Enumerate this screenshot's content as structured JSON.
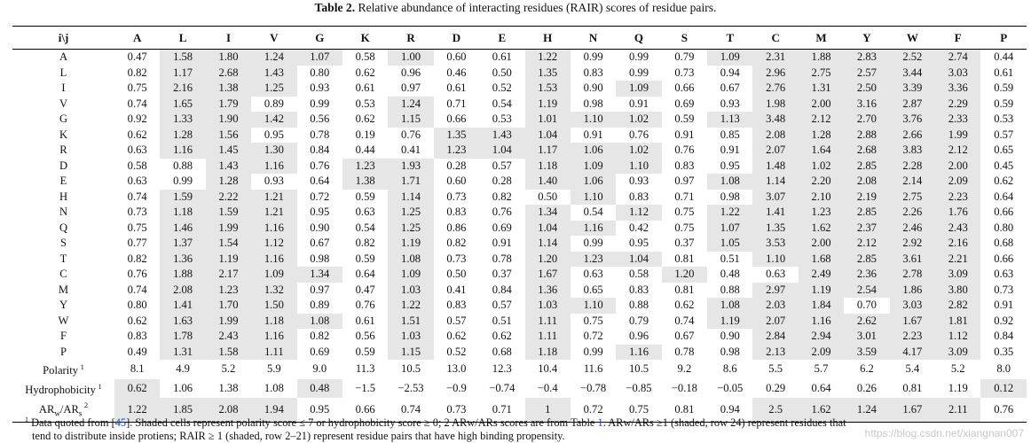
{
  "caption": {
    "label": "Table 2.",
    "text": " Relative abundance of interacting residues (RAIR) scores of residue pairs."
  },
  "table": {
    "corner": "i\\j",
    "columns": [
      "A",
      "L",
      "I",
      "V",
      "G",
      "K",
      "R",
      "D",
      "E",
      "H",
      "N",
      "Q",
      "S",
      "T",
      "C",
      "M",
      "Y",
      "W",
      "F",
      "P"
    ],
    "rows": [
      {
        "label": "A",
        "values": [
          "0.47",
          "1.58",
          "1.80",
          "1.24",
          "1.07",
          "0.58",
          "1.00",
          "0.60",
          "0.61",
          "1.22",
          "0.99",
          "0.99",
          "0.79",
          "1.09",
          "2.31",
          "1.88",
          "2.83",
          "2.52",
          "2.74",
          "0.44"
        ],
        "shaded": [
          false,
          true,
          true,
          true,
          true,
          false,
          true,
          false,
          false,
          true,
          false,
          false,
          false,
          true,
          true,
          true,
          true,
          true,
          true,
          false
        ]
      },
      {
        "label": "L",
        "values": [
          "0.82",
          "1.17",
          "2.68",
          "1.43",
          "0.80",
          "0.62",
          "0.96",
          "0.46",
          "0.50",
          "1.35",
          "0.83",
          "0.99",
          "0.73",
          "0.94",
          "2.96",
          "2.75",
          "2.57",
          "3.44",
          "3.03",
          "0.61"
        ],
        "shaded": [
          false,
          true,
          true,
          true,
          false,
          false,
          false,
          false,
          false,
          true,
          false,
          false,
          false,
          false,
          true,
          true,
          true,
          true,
          true,
          false
        ]
      },
      {
        "label": "I",
        "values": [
          "0.75",
          "2.16",
          "1.38",
          "1.25",
          "0.93",
          "0.61",
          "0.97",
          "0.61",
          "0.52",
          "1.53",
          "0.90",
          "1.09",
          "0.66",
          "0.67",
          "2.76",
          "1.31",
          "2.50",
          "3.39",
          "3.36",
          "0.59"
        ],
        "shaded": [
          false,
          true,
          true,
          true,
          false,
          false,
          false,
          false,
          false,
          true,
          false,
          true,
          false,
          false,
          true,
          true,
          true,
          true,
          true,
          false
        ]
      },
      {
        "label": "V",
        "values": [
          "0.74",
          "1.65",
          "1.79",
          "0.89",
          "0.99",
          "0.53",
          "1.24",
          "0.71",
          "0.54",
          "1.19",
          "0.98",
          "0.91",
          "0.69",
          "0.93",
          "1.98",
          "2.00",
          "3.16",
          "2.87",
          "2.29",
          "0.59"
        ],
        "shaded": [
          false,
          true,
          true,
          false,
          false,
          false,
          true,
          false,
          false,
          true,
          false,
          false,
          false,
          false,
          true,
          true,
          true,
          true,
          true,
          false
        ]
      },
      {
        "label": "G",
        "values": [
          "0.92",
          "1.33",
          "1.90",
          "1.42",
          "0.56",
          "0.62",
          "1.15",
          "0.66",
          "0.53",
          "1.01",
          "1.10",
          "1.02",
          "0.59",
          "1.13",
          "3.48",
          "2.12",
          "2.70",
          "3.76",
          "2.33",
          "0.53"
        ],
        "shaded": [
          false,
          true,
          true,
          true,
          false,
          false,
          true,
          false,
          false,
          true,
          true,
          true,
          false,
          true,
          true,
          true,
          true,
          true,
          true,
          false
        ]
      },
      {
        "label": "K",
        "values": [
          "0.62",
          "1.28",
          "1.56",
          "0.95",
          "0.78",
          "0.19",
          "0.76",
          "1.35",
          "1.43",
          "1.04",
          "0.91",
          "0.76",
          "0.91",
          "0.85",
          "2.08",
          "1.28",
          "2.88",
          "2.66",
          "1.99",
          "0.57"
        ],
        "shaded": [
          false,
          true,
          true,
          false,
          false,
          false,
          false,
          true,
          true,
          true,
          false,
          false,
          false,
          false,
          true,
          true,
          true,
          true,
          true,
          false
        ]
      },
      {
        "label": "R",
        "values": [
          "0.63",
          "1.16",
          "1.45",
          "1.30",
          "0.84",
          "0.44",
          "0.41",
          "1.23",
          "1.04",
          "1.17",
          "1.06",
          "1.02",
          "0.76",
          "0.91",
          "2.07",
          "1.64",
          "2.68",
          "3.83",
          "2.12",
          "0.65"
        ],
        "shaded": [
          false,
          true,
          true,
          true,
          false,
          false,
          false,
          true,
          true,
          true,
          true,
          true,
          false,
          false,
          true,
          true,
          true,
          true,
          true,
          false
        ]
      },
      {
        "label": "D",
        "values": [
          "0.58",
          "0.88",
          "1.43",
          "1.16",
          "0.76",
          "1.23",
          "1.93",
          "0.28",
          "0.57",
          "1.18",
          "1.09",
          "1.10",
          "0.83",
          "0.95",
          "1.48",
          "1.02",
          "2.85",
          "2.28",
          "2.00",
          "0.45"
        ],
        "shaded": [
          false,
          false,
          true,
          true,
          false,
          true,
          true,
          false,
          false,
          true,
          true,
          true,
          false,
          false,
          true,
          true,
          true,
          true,
          true,
          false
        ]
      },
      {
        "label": "E",
        "values": [
          "0.63",
          "0.99",
          "1.28",
          "0.93",
          "0.64",
          "1.38",
          "1.71",
          "0.60",
          "0.28",
          "1.40",
          "1.06",
          "0.93",
          "0.97",
          "1.08",
          "1.14",
          "2.20",
          "2.08",
          "2.14",
          "2.09",
          "0.62"
        ],
        "shaded": [
          false,
          false,
          true,
          false,
          false,
          true,
          true,
          false,
          false,
          true,
          true,
          false,
          false,
          true,
          true,
          true,
          true,
          true,
          true,
          false
        ]
      },
      {
        "label": "H",
        "values": [
          "0.74",
          "1.59",
          "2.22",
          "1.21",
          "0.72",
          "0.59",
          "1.14",
          "0.73",
          "0.82",
          "0.50",
          "1.10",
          "0.83",
          "0.71",
          "0.98",
          "3.07",
          "2.10",
          "2.19",
          "2.75",
          "2.23",
          "0.64"
        ],
        "shaded": [
          false,
          true,
          true,
          true,
          false,
          false,
          true,
          false,
          false,
          false,
          true,
          false,
          false,
          false,
          true,
          true,
          true,
          true,
          true,
          false
        ]
      },
      {
        "label": "N",
        "values": [
          "0.73",
          "1.18",
          "1.59",
          "1.21",
          "0.95",
          "0.63",
          "1.25",
          "0.83",
          "0.76",
          "1.34",
          "0.54",
          "1.12",
          "0.75",
          "1.22",
          "1.41",
          "1.23",
          "2.85",
          "2.26",
          "1.76",
          "0.66"
        ],
        "shaded": [
          false,
          true,
          true,
          true,
          false,
          false,
          true,
          false,
          false,
          true,
          false,
          true,
          false,
          true,
          true,
          true,
          true,
          true,
          true,
          false
        ]
      },
      {
        "label": "Q",
        "values": [
          "0.75",
          "1.46",
          "1.99",
          "1.16",
          "0.90",
          "0.54",
          "1.25",
          "0.86",
          "0.69",
          "1.04",
          "1.16",
          "0.42",
          "0.75",
          "1.07",
          "1.35",
          "1.62",
          "2.37",
          "2.46",
          "2.43",
          "0.80"
        ],
        "shaded": [
          false,
          true,
          true,
          true,
          false,
          false,
          true,
          false,
          false,
          true,
          true,
          false,
          false,
          true,
          true,
          true,
          true,
          true,
          true,
          false
        ]
      },
      {
        "label": "S",
        "values": [
          "0.77",
          "1.37",
          "1.54",
          "1.12",
          "0.67",
          "0.82",
          "1.19",
          "0.82",
          "0.91",
          "1.14",
          "0.99",
          "0.95",
          "0.37",
          "1.05",
          "3.53",
          "2.00",
          "2.12",
          "2.92",
          "2.16",
          "0.68"
        ],
        "shaded": [
          false,
          true,
          true,
          true,
          false,
          false,
          true,
          false,
          false,
          true,
          false,
          false,
          false,
          true,
          true,
          true,
          true,
          true,
          true,
          false
        ]
      },
      {
        "label": "T",
        "values": [
          "0.82",
          "1.36",
          "1.19",
          "1.16",
          "0.98",
          "0.59",
          "1.08",
          "0.73",
          "0.78",
          "1.20",
          "1.23",
          "1.04",
          "0.81",
          "0.51",
          "1.10",
          "1.68",
          "2.85",
          "3.61",
          "2.21",
          "0.66"
        ],
        "shaded": [
          false,
          true,
          true,
          true,
          false,
          false,
          true,
          false,
          false,
          true,
          true,
          true,
          false,
          false,
          true,
          true,
          true,
          true,
          true,
          false
        ]
      },
      {
        "label": "C",
        "values": [
          "0.76",
          "1.88",
          "2.17",
          "1.09",
          "1.34",
          "0.64",
          "1.09",
          "0.50",
          "0.37",
          "1.67",
          "0.63",
          "0.58",
          "1.20",
          "0.48",
          "0.63",
          "2.49",
          "2.36",
          "2.78",
          "3.09",
          "0.63"
        ],
        "shaded": [
          false,
          true,
          true,
          true,
          true,
          false,
          true,
          false,
          false,
          true,
          false,
          false,
          true,
          false,
          false,
          true,
          true,
          true,
          true,
          false
        ]
      },
      {
        "label": "M",
        "values": [
          "0.74",
          "2.08",
          "1.23",
          "1.32",
          "0.97",
          "0.47",
          "1.03",
          "0.41",
          "0.84",
          "1.36",
          "0.65",
          "0.83",
          "0.81",
          "0.88",
          "2.97",
          "1.19",
          "2.54",
          "1.86",
          "3.80",
          "0.73"
        ],
        "shaded": [
          false,
          true,
          true,
          true,
          false,
          false,
          true,
          false,
          false,
          true,
          false,
          false,
          false,
          false,
          true,
          true,
          true,
          true,
          true,
          false
        ]
      },
      {
        "label": "Y",
        "values": [
          "0.80",
          "1.41",
          "1.70",
          "1.50",
          "0.89",
          "0.76",
          "1.22",
          "0.83",
          "0.57",
          "1.03",
          "1.10",
          "0.88",
          "0.62",
          "1.08",
          "2.03",
          "1.84",
          "0.70",
          "3.03",
          "2.82",
          "0.91"
        ],
        "shaded": [
          false,
          true,
          true,
          true,
          false,
          false,
          true,
          false,
          false,
          true,
          true,
          false,
          false,
          true,
          true,
          true,
          false,
          true,
          true,
          false
        ]
      },
      {
        "label": "W",
        "values": [
          "0.62",
          "1.63",
          "1.99",
          "1.18",
          "1.08",
          "0.61",
          "1.51",
          "0.57",
          "0.51",
          "1.11",
          "0.75",
          "0.79",
          "0.74",
          "1.19",
          "2.07",
          "1.16",
          "2.62",
          "1.67",
          "1.81",
          "0.92"
        ],
        "shaded": [
          false,
          true,
          true,
          true,
          true,
          false,
          true,
          false,
          false,
          true,
          false,
          false,
          false,
          true,
          true,
          true,
          true,
          true,
          true,
          false
        ]
      },
      {
        "label": "F",
        "values": [
          "0.83",
          "1.78",
          "2.43",
          "1.16",
          "0.82",
          "0.56",
          "1.03",
          "0.62",
          "0.62",
          "1.11",
          "0.72",
          "0.96",
          "0.67",
          "0.90",
          "2.84",
          "2.94",
          "3.01",
          "2.23",
          "1.12",
          "0.84"
        ],
        "shaded": [
          false,
          true,
          true,
          true,
          false,
          false,
          true,
          false,
          false,
          true,
          false,
          false,
          false,
          false,
          true,
          true,
          true,
          true,
          true,
          false
        ]
      },
      {
        "label": "P",
        "values": [
          "0.49",
          "1.31",
          "1.58",
          "1.11",
          "0.69",
          "0.59",
          "1.15",
          "0.52",
          "0.68",
          "1.18",
          "0.99",
          "1.16",
          "0.78",
          "0.98",
          "2.13",
          "2.09",
          "3.59",
          "4.17",
          "3.09",
          "0.35"
        ],
        "shaded": [
          false,
          true,
          true,
          true,
          false,
          false,
          true,
          false,
          false,
          true,
          false,
          true,
          false,
          false,
          true,
          true,
          true,
          true,
          true,
          false
        ]
      },
      {
        "label": "Polarity",
        "sup": "1",
        "values": [
          "8.1",
          "4.9",
          "5.2",
          "5.9",
          "9.0",
          "11.3",
          "10.5",
          "13.0",
          "12.3",
          "10.4",
          "11.6",
          "10.5",
          "9.2",
          "8.6",
          "5.5",
          "5.7",
          "6.2",
          "5.4",
          "5.2",
          "8.0"
        ],
        "shaded": [
          false,
          false,
          false,
          false,
          false,
          false,
          false,
          false,
          false,
          false,
          false,
          false,
          false,
          false,
          false,
          false,
          false,
          false,
          false,
          false
        ]
      },
      {
        "label": "Hydrophobicity",
        "sup": "1",
        "values": [
          "0.62",
          "1.06",
          "1.38",
          "1.08",
          "0.48",
          "−1.5",
          "−2.53",
          "−0.9",
          "−0.74",
          "−0.4",
          "−0.78",
          "−0.85",
          "−0.18",
          "−0.05",
          "0.29",
          "0.64",
          "0.26",
          "0.81",
          "1.19",
          "0.12"
        ],
        "shaded": [
          true,
          false,
          false,
          false,
          true,
          false,
          false,
          false,
          false,
          false,
          false,
          false,
          false,
          false,
          false,
          false,
          false,
          false,
          false,
          true
        ]
      },
      {
        "label": "ARw/ARs",
        "sup": "2",
        "values": [
          "1.22",
          "1.85",
          "2.08",
          "1.94",
          "0.95",
          "0.66",
          "0.74",
          "0.73",
          "0.71",
          "1",
          "0.72",
          "0.75",
          "0.81",
          "0.94",
          "2.5",
          "1.62",
          "1.24",
          "1.67",
          "2.11",
          "0.76"
        ],
        "shaded": [
          true,
          true,
          true,
          true,
          false,
          false,
          false,
          false,
          false,
          true,
          false,
          false,
          false,
          false,
          true,
          true,
          true,
          true,
          true,
          false
        ]
      }
    ]
  },
  "footnote": {
    "line1_sup": "1",
    "line1_a": " Data quoted from [",
    "line1_ref": "45",
    "line1_b": "]. Shaded cells represent polarity score ≤ 7 or hydrophobicity score ≥ 0; 2 ARw/ARs scores are from Table ",
    "line1_tref": "1",
    "line1_c": ". ARw/ARs ≥1 (shaded, row 24) represent residues that",
    "line2": "tend to distribute inside protiens; RAIR ≥ 1 (shaded, row 2–21) represent residue pairs that have high binding propensity."
  },
  "watermark": "https://blog.csdn.net/xiangnan007"
}
